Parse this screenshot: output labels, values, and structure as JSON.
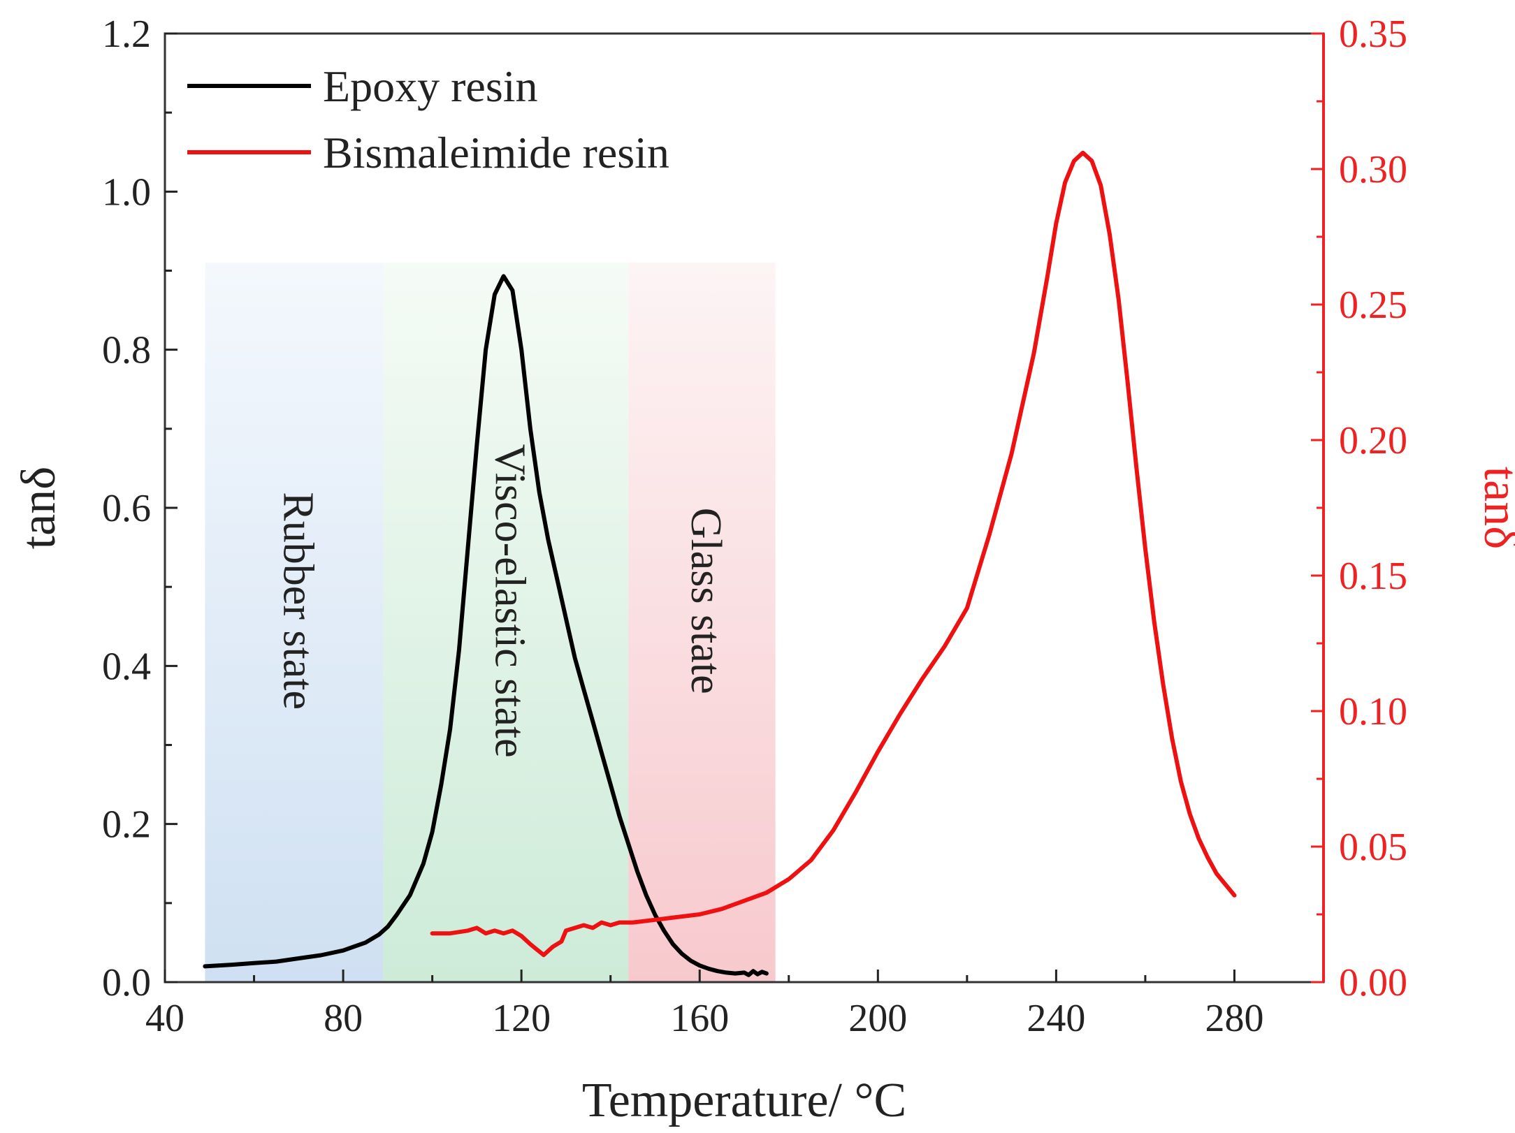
{
  "chart_data": {
    "type": "line",
    "title": "",
    "xlabel": "Temperature/ °C",
    "ylabel_left": "tanδ",
    "ylabel_right": "tanδ",
    "xlim": [
      40,
      300
    ],
    "ylim_left": [
      0.0,
      1.2
    ],
    "ylim_right": [
      0.0,
      0.35
    ],
    "x_ticks": [
      40,
      80,
      120,
      160,
      200,
      240,
      280
    ],
    "x_tick_labels": [
      "40",
      "80",
      "120",
      "160",
      "200",
      "240",
      "280"
    ],
    "y_left_ticks": [
      0.0,
      0.2,
      0.4,
      0.6,
      0.8,
      1.0,
      1.2
    ],
    "y_left_tick_labels": [
      "0.0",
      "0.2",
      "0.4",
      "0.6",
      "0.8",
      "1.0",
      "1.2"
    ],
    "y_right_ticks": [
      0.0,
      0.05,
      0.1,
      0.15,
      0.2,
      0.25,
      0.3,
      0.35
    ],
    "y_right_tick_labels": [
      "0.00",
      "0.05",
      "0.10",
      "0.15",
      "0.20",
      "0.25",
      "0.30",
      "0.35"
    ],
    "grid": false,
    "legend_position": "top-left",
    "colors": {
      "left_axis": "#222222",
      "right_axis": "#ee2222",
      "epoxy": "#000000",
      "bismaleimide": "#ee1111"
    },
    "regions": [
      {
        "label": "Rubber state",
        "x_start": 49,
        "x_end": 89,
        "y_top": 0.91,
        "color_top": "#f4f8fd",
        "color_bottom": "#cfe0f2"
      },
      {
        "label": "Visco-elastic state",
        "x_start": 89,
        "x_end": 144,
        "y_top": 0.91,
        "color_top": "#f5fbf6",
        "color_bottom": "#cdebd8"
      },
      {
        "label": "Glass state",
        "x_start": 144,
        "x_end": 177,
        "y_top": 0.91,
        "color_top": "#fdf4f5",
        "color_bottom": "#f7c9cd"
      }
    ],
    "series": [
      {
        "name": "Epoxy resin",
        "axis": "left",
        "x": [
          49,
          55,
          60,
          65,
          70,
          75,
          80,
          85,
          88,
          90,
          92,
          95,
          98,
          100,
          102,
          104,
          106,
          108,
          110,
          112,
          114,
          116,
          118,
          120,
          122,
          124,
          126,
          128,
          130,
          132,
          134,
          136,
          138,
          140,
          142,
          144,
          146,
          148,
          150,
          152,
          154,
          156,
          158,
          160,
          162,
          164,
          166,
          168,
          170,
          171,
          172,
          173,
          174,
          175
        ],
        "y": [
          0.02,
          0.022,
          0.024,
          0.026,
          0.03,
          0.034,
          0.04,
          0.05,
          0.06,
          0.07,
          0.085,
          0.11,
          0.15,
          0.19,
          0.25,
          0.32,
          0.42,
          0.55,
          0.68,
          0.8,
          0.87,
          0.893,
          0.875,
          0.8,
          0.7,
          0.62,
          0.56,
          0.51,
          0.46,
          0.41,
          0.37,
          0.33,
          0.29,
          0.25,
          0.21,
          0.175,
          0.14,
          0.11,
          0.085,
          0.065,
          0.048,
          0.036,
          0.027,
          0.021,
          0.017,
          0.014,
          0.012,
          0.011,
          0.012,
          0.009,
          0.014,
          0.01,
          0.013,
          0.011
        ]
      },
      {
        "name": "Bismaleimide resin",
        "axis": "right",
        "x": [
          100,
          104,
          108,
          110,
          112,
          114,
          116,
          118,
          120,
          122,
          125,
          127,
          129,
          130,
          132,
          134,
          136,
          138,
          140,
          142,
          145,
          150,
          155,
          160,
          165,
          170,
          175,
          180,
          185,
          190,
          195,
          200,
          205,
          210,
          215,
          220,
          225,
          230,
          235,
          238,
          240,
          242,
          244,
          246,
          248,
          250,
          252,
          254,
          256,
          258,
          260,
          262,
          264,
          266,
          268,
          270,
          272,
          274,
          276,
          278,
          280
        ],
        "y": [
          0.018,
          0.018,
          0.019,
          0.02,
          0.018,
          0.019,
          0.018,
          0.019,
          0.017,
          0.014,
          0.01,
          0.013,
          0.015,
          0.019,
          0.02,
          0.021,
          0.02,
          0.022,
          0.021,
          0.022,
          0.022,
          0.023,
          0.024,
          0.025,
          0.027,
          0.03,
          0.033,
          0.038,
          0.045,
          0.056,
          0.07,
          0.085,
          0.099,
          0.112,
          0.124,
          0.138,
          0.165,
          0.195,
          0.232,
          0.26,
          0.28,
          0.295,
          0.303,
          0.306,
          0.303,
          0.294,
          0.276,
          0.252,
          0.222,
          0.19,
          0.16,
          0.133,
          0.11,
          0.09,
          0.074,
          0.062,
          0.053,
          0.046,
          0.04,
          0.036,
          0.032
        ]
      }
    ]
  }
}
